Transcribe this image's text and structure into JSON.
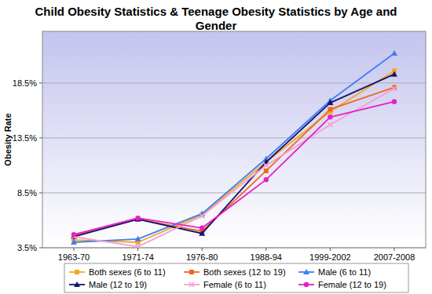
{
  "chart_data": {
    "type": "line",
    "title": "Child Obesity Statistics & Teenage Obesity Statistics by Age and Gender",
    "y_label": "Obesity Rate",
    "categories": [
      "1963-70",
      "1971-74",
      "1976-80",
      "1988-94",
      "1999-2002",
      "2007-2008"
    ],
    "series": [
      {
        "name": "Both sexes (6 to 11)",
        "color": "#f5a623",
        "marker": "square",
        "values": [
          4.2,
          4.0,
          6.5,
          11.3,
          15.9,
          19.6
        ]
      },
      {
        "name": "Both sexes (12 to 19)",
        "color": "#f0691e",
        "marker": "square",
        "values": [
          4.6,
          6.1,
          5.0,
          10.5,
          16.1,
          18.1
        ]
      },
      {
        "name": "Male (6 to 11)",
        "color": "#3d7ff2",
        "marker": "triangle",
        "values": [
          4.0,
          4.3,
          6.6,
          11.6,
          16.9,
          21.2
        ]
      },
      {
        "name": "Male (12 to 19)",
        "color": "#15156a",
        "marker": "triangle",
        "values": [
          4.5,
          6.1,
          4.8,
          11.3,
          16.7,
          19.3
        ]
      },
      {
        "name": "Female (6 to 11)",
        "color": "#f2a2d2",
        "marker": "x",
        "values": [
          4.5,
          3.6,
          6.4,
          11.0,
          14.7,
          18.0
        ]
      },
      {
        "name": "Female (12 to 19)",
        "color": "#e61fc8",
        "marker": "circle",
        "values": [
          4.7,
          6.2,
          5.3,
          9.7,
          15.4,
          16.8
        ]
      }
    ],
    "ylim": [
      3.5,
      23.2
    ],
    "yticks": [
      {
        "value": 3.5,
        "label": "3.5%"
      },
      {
        "value": 8.5,
        "label": "8.5%"
      },
      {
        "value": 13.5,
        "label": "13.5%"
      },
      {
        "value": 18.5,
        "label": "18.5%"
      }
    ],
    "grid": true,
    "legend": "bottom"
  }
}
